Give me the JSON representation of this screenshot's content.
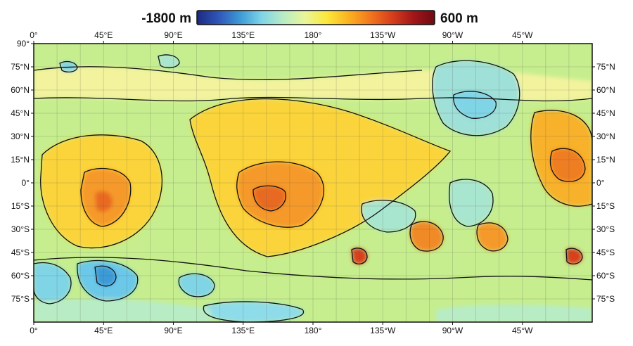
{
  "colorbar": {
    "min_label": "-1800 m",
    "max_label": "600 m",
    "min_value": -1800,
    "max_value": 600,
    "colors": [
      "#1c2a80",
      "#2f56b8",
      "#3d9ad6",
      "#7fd4e6",
      "#b8ecc4",
      "#e9f59a",
      "#fbe83c",
      "#fbb321",
      "#f2781e",
      "#d8401c",
      "#a3161a",
      "#6e0b12"
    ]
  },
  "map": {
    "background_color": "#c6ee8e",
    "contour_color": "#111111"
  },
  "axes": {
    "top_labels": [
      "0°",
      "45°E",
      "90°E",
      "135°E",
      "180°",
      "135°W",
      "90°W",
      "45°W"
    ],
    "bottom_labels": [
      "0°",
      "45°E",
      "90°E",
      "135°E",
      "180°",
      "135°W",
      "90°W",
      "45°W"
    ],
    "left_labels": [
      "90°",
      "75°N",
      "60°N",
      "45°N",
      "30°N",
      "15°N",
      "0°",
      "15°S",
      "30°S",
      "45°S",
      "60°S",
      "75°S"
    ],
    "right_labels": [
      "75°N",
      "60°N",
      "45°N",
      "30°N",
      "15°N",
      "0°",
      "15°S",
      "30°S",
      "45°S",
      "60°S",
      "75°S"
    ]
  }
}
